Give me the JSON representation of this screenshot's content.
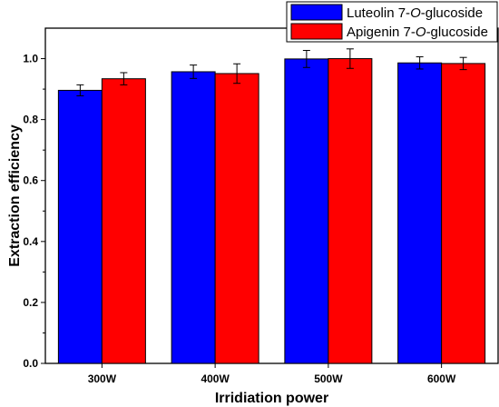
{
  "chart_data": {
    "type": "bar",
    "categories": [
      "300W",
      "400W",
      "500W",
      "600W"
    ],
    "series": [
      {
        "name_main": "Luteolin 7-",
        "name_italic": "O",
        "name_tail": "-glucoside",
        "color": "#0000ff",
        "values": [
          0.896,
          0.957,
          0.999,
          0.986
        ],
        "errors": [
          0.018,
          0.022,
          0.028,
          0.02
        ]
      },
      {
        "name_main": "Apigenin 7-",
        "name_italic": "O",
        "name_tail": "-glucoside",
        "color": "#ff0000",
        "values": [
          0.934,
          0.951,
          1.0,
          0.984
        ],
        "errors": [
          0.02,
          0.032,
          0.032,
          0.02
        ]
      }
    ],
    "xlabel": "Irridiation power",
    "ylabel": "Extraction efficiency",
    "ylim": [
      0.0,
      1.1
    ],
    "yticks": [
      "0.0",
      "0.2",
      "0.4",
      "0.6",
      "0.8",
      "1.0"
    ],
    "grid": false,
    "legend_position": "top-right"
  }
}
